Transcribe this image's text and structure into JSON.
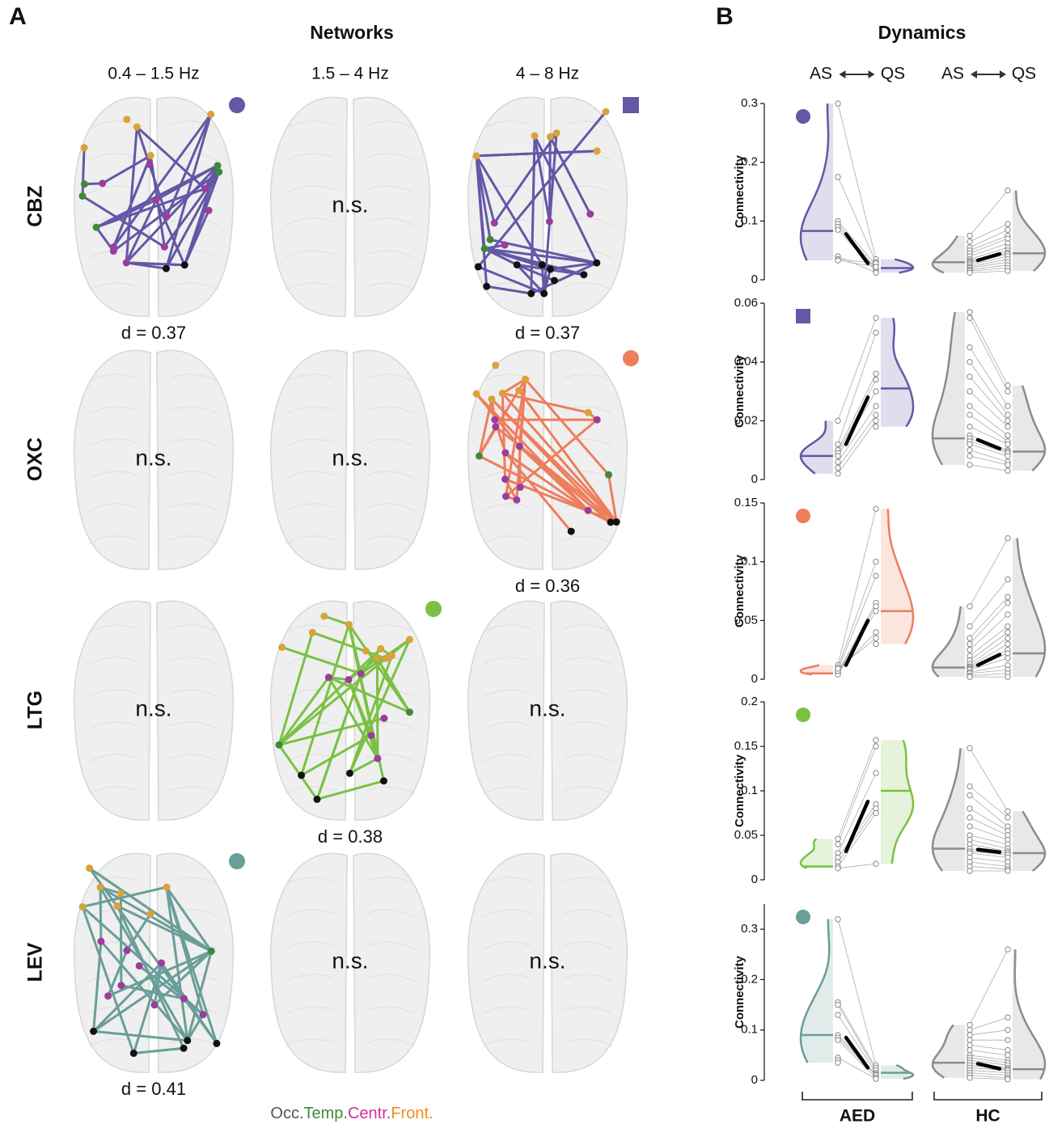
{
  "panel_a": {
    "letter": "A",
    "title": "Networks",
    "bands": [
      "0.4 – 1.5 Hz",
      "1.5 – 4 Hz",
      "4 – 8 Hz"
    ],
    "drugs": [
      {
        "name": "CBZ",
        "color": "#6457a6",
        "cells": [
          {
            "label": "d = 0.37",
            "marker": "circle"
          },
          {
            "label": "n.s."
          },
          {
            "label": "d = 0.37",
            "marker": "square"
          }
        ]
      },
      {
        "name": "OXC",
        "color": "#ee7d5c",
        "cells": [
          {
            "label": "n.s."
          },
          {
            "label": "n.s."
          },
          {
            "label": "d = 0.36",
            "marker": "circle"
          }
        ]
      },
      {
        "name": "LTG",
        "color": "#7ac143",
        "cells": [
          {
            "label": "n.s."
          },
          {
            "label": "d = 0.38",
            "marker": "circle"
          },
          {
            "label": "n.s."
          }
        ]
      },
      {
        "name": "LEV",
        "color": "#6a9e98",
        "cells": [
          {
            "label": "d = 0.41",
            "marker": "circle"
          },
          {
            "label": "n.s."
          },
          {
            "label": "n.s."
          }
        ]
      }
    ],
    "legend": [
      {
        "label": "Occ.",
        "color": "#555555"
      },
      {
        "label": "Temp.",
        "color": "#3f8a3a"
      },
      {
        "label": "Centr.",
        "color": "#d1309a"
      },
      {
        "label": "Front.",
        "color": "#f08c1e"
      }
    ]
  },
  "panel_b": {
    "letter": "B",
    "title": "Dynamics",
    "conditions": [
      "AS",
      "QS"
    ],
    "groups": [
      "AED",
      "HC"
    ]
  },
  "chart_data": [
    {
      "type": "paired-violin",
      "ylabel": "Connectivity",
      "marker": "circle",
      "color": "#6457a6",
      "ylim": [
        0,
        0.3
      ],
      "yticks": [
        0,
        0.1,
        0.2,
        0.3
      ],
      "groups": [
        {
          "color": "#6457a6",
          "as": [
            0.3,
            0.175,
            0.1,
            0.095,
            0.09,
            0.085,
            0.04,
            0.035,
            0.033
          ],
          "qs": [
            0.035,
            0.03,
            0.025,
            0.02,
            0.018,
            0.015,
            0.012,
            0.028,
            0.022
          ],
          "as_median": 0.083,
          "qs_median": 0.02,
          "as_mean": 0.078,
          "qs_mean": 0.028
        },
        {
          "color": "#8c8c8c",
          "as": [
            0.075,
            0.065,
            0.055,
            0.05,
            0.045,
            0.04,
            0.035,
            0.032,
            0.03,
            0.028,
            0.025,
            0.022,
            0.02,
            0.017,
            0.015,
            0.012
          ],
          "qs": [
            0.152,
            0.095,
            0.085,
            0.075,
            0.07,
            0.062,
            0.055,
            0.05,
            0.046,
            0.044,
            0.04,
            0.035,
            0.03,
            0.025,
            0.02,
            0.015
          ],
          "as_median": 0.03,
          "qs_median": 0.045,
          "as_mean": 0.033,
          "qs_mean": 0.044
        }
      ]
    },
    {
      "type": "paired-violin",
      "ylabel": "Connectivity",
      "marker": "square",
      "color": "#6457a6",
      "ylim": [
        0,
        0.06
      ],
      "yticks": [
        0,
        0.02,
        0.04,
        0.06
      ],
      "groups": [
        {
          "color": "#6457a6",
          "as": [
            0.02,
            0.012,
            0.01,
            0.009,
            0.008,
            0.006,
            0.004,
            0.002
          ],
          "qs": [
            0.055,
            0.05,
            0.036,
            0.034,
            0.03,
            0.025,
            0.022,
            0.02,
            0.018
          ],
          "as_median": 0.008,
          "qs_median": 0.031,
          "as_mean": 0.012,
          "qs_mean": 0.028
        },
        {
          "color": "#8c8c8c",
          "as": [
            0.057,
            0.055,
            0.045,
            0.04,
            0.035,
            0.03,
            0.025,
            0.022,
            0.018,
            0.015,
            0.014,
            0.013,
            0.012,
            0.01,
            0.008,
            0.005
          ],
          "qs": [
            0.032,
            0.03,
            0.025,
            0.022,
            0.02,
            0.018,
            0.015,
            0.013,
            0.012,
            0.01,
            0.0095,
            0.009,
            0.008,
            0.006,
            0.005,
            0.003
          ],
          "as_median": 0.014,
          "qs_median": 0.0095,
          "as_mean": 0.0135,
          "qs_mean": 0.0105
        }
      ]
    },
    {
      "type": "paired-violin",
      "ylabel": "Connectivity",
      "marker": "circle",
      "color": "#ee7d5c",
      "ylim": [
        0,
        0.15
      ],
      "yticks": [
        0,
        0.05,
        0.1,
        0.15
      ],
      "groups": [
        {
          "color": "#ee7d5c",
          "as": [
            0.012,
            0.01,
            0.008,
            0.006,
            0.005,
            0.004,
            0.007,
            0.009
          ],
          "qs": [
            0.145,
            0.1,
            0.088,
            0.065,
            0.062,
            0.058,
            0.04,
            0.035,
            0.03
          ],
          "as_median": 0.005,
          "qs_median": 0.058,
          "as_mean": 0.012,
          "qs_mean": 0.05
        },
        {
          "color": "#8c8c8c",
          "as": [
            0.062,
            0.045,
            0.035,
            0.03,
            0.025,
            0.02,
            0.016,
            0.013,
            0.011,
            0.01,
            0.009,
            0.008,
            0.006,
            0.005,
            0.003,
            0.002
          ],
          "qs": [
            0.12,
            0.085,
            0.07,
            0.065,
            0.055,
            0.045,
            0.04,
            0.035,
            0.03,
            0.025,
            0.022,
            0.018,
            0.012,
            0.008,
            0.005,
            0.002
          ],
          "as_median": 0.01,
          "qs_median": 0.022,
          "as_mean": 0.012,
          "qs_mean": 0.021
        }
      ]
    },
    {
      "type": "paired-violin",
      "ylabel": "Connectivity",
      "marker": "circle",
      "color": "#7ac143",
      "ylim": [
        0,
        0.2
      ],
      "yticks": [
        0,
        0.05,
        0.1,
        0.15,
        0.2
      ],
      "groups": [
        {
          "color": "#7ac143",
          "as": [
            0.046,
            0.04,
            0.03,
            0.025,
            0.02,
            0.015,
            0.013
          ],
          "qs": [
            0.157,
            0.15,
            0.12,
            0.085,
            0.08,
            0.075,
            0.018
          ],
          "as_median": 0.015,
          "qs_median": 0.1,
          "as_mean": 0.032,
          "qs_mean": 0.088
        },
        {
          "color": "#8c8c8c",
          "as": [
            0.148,
            0.105,
            0.095,
            0.08,
            0.07,
            0.06,
            0.05,
            0.045,
            0.04,
            0.035,
            0.032,
            0.03,
            0.025,
            0.02,
            0.015,
            0.01
          ],
          "qs": [
            0.077,
            0.07,
            0.06,
            0.055,
            0.05,
            0.045,
            0.04,
            0.035,
            0.032,
            0.03,
            0.028,
            0.025,
            0.02,
            0.015,
            0.012,
            0.01
          ],
          "as_median": 0.035,
          "qs_median": 0.03,
          "as_mean": 0.034,
          "qs_mean": 0.031
        }
      ]
    },
    {
      "type": "paired-violin",
      "ylabel": "Connectivity",
      "marker": "circle",
      "color": "#6a9e98",
      "ylim": [
        0,
        0.35
      ],
      "yticks": [
        0,
        0.1,
        0.2,
        0.3
      ],
      "groups": [
        {
          "color": "#6a9e98",
          "as": [
            0.32,
            0.155,
            0.15,
            0.13,
            0.09,
            0.085,
            0.08,
            0.045,
            0.04,
            0.035
          ],
          "qs": [
            0.03,
            0.025,
            0.02,
            0.015,
            0.012,
            0.01,
            0.005,
            0.003
          ],
          "as_median": 0.09,
          "qs_median": 0.015,
          "as_mean": 0.085,
          "qs_mean": 0.025
        },
        {
          "color": "#8c8c8c",
          "as": [
            0.11,
            0.1,
            0.09,
            0.08,
            0.07,
            0.06,
            0.05,
            0.045,
            0.04,
            0.035,
            0.03,
            0.025,
            0.02,
            0.015,
            0.01,
            0.005
          ],
          "qs": [
            0.26,
            0.125,
            0.1,
            0.08,
            0.06,
            0.05,
            0.04,
            0.035,
            0.03,
            0.025,
            0.022,
            0.02,
            0.015,
            0.01,
            0.005,
            0.002
          ],
          "as_median": 0.035,
          "qs_median": 0.022,
          "as_mean": 0.033,
          "qs_mean": 0.023
        }
      ]
    }
  ]
}
